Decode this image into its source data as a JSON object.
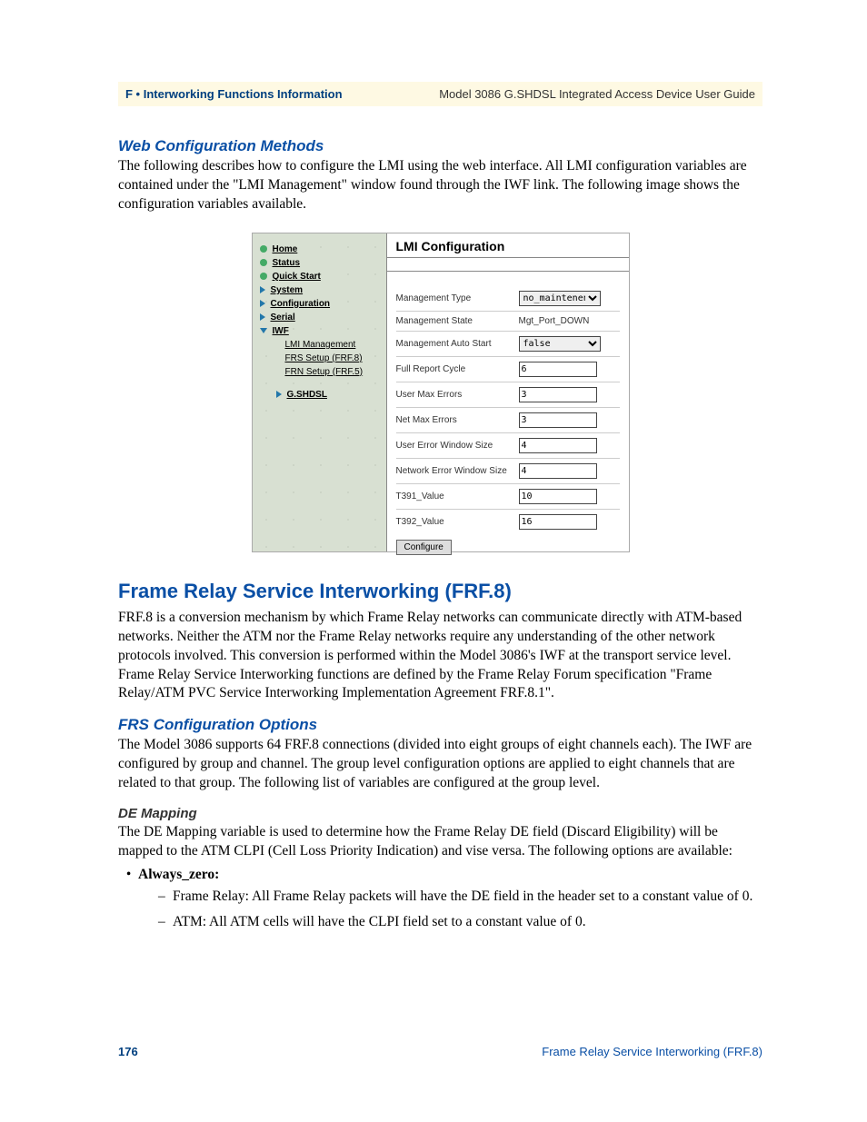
{
  "header": {
    "left": "F • Interworking Functions Information",
    "right": "Model 3086 G.SHDSL Integrated Access Device User Guide"
  },
  "section1": {
    "heading": "Web Configuration Methods",
    "body": "The following describes how to configure the LMI using the web interface. All LMI configuration variables are contained under the \"LMI Management\" window found through the IWF link. The following image shows the configuration variables available."
  },
  "screenshot": {
    "nav": {
      "items": [
        {
          "icon": "bullet",
          "label": "Home",
          "bold": true
        },
        {
          "icon": "bullet",
          "label": "Status",
          "bold": true
        },
        {
          "icon": "bullet",
          "label": "Quick Start",
          "bold": true
        },
        {
          "icon": "tri",
          "label": "System",
          "bold": true
        },
        {
          "icon": "tri",
          "label": "Configuration",
          "bold": true
        },
        {
          "icon": "tri",
          "label": "Serial",
          "bold": true
        },
        {
          "icon": "tri-down",
          "label": "IWF",
          "bold": true
        }
      ],
      "subitems": [
        "LMI Management",
        "FRS Setup (FRF.8)",
        "FRN Setup (FRF.5)"
      ],
      "gshdsl": {
        "icon": "tri",
        "label": "G.SHDSL",
        "bold": true
      }
    },
    "main": {
      "title": "LMI Configuration",
      "rows": [
        {
          "label": "Management Type",
          "type": "select",
          "value": "no_maintenence"
        },
        {
          "label": "Management State",
          "type": "text",
          "value": "Mgt_Port_DOWN"
        },
        {
          "label": "Management Auto Start",
          "type": "select",
          "value": "false"
        },
        {
          "label": "Full Report Cycle",
          "type": "input",
          "value": "6"
        },
        {
          "label": "User Max Errors",
          "type": "input",
          "value": "3"
        },
        {
          "label": "Net Max Errors",
          "type": "input",
          "value": "3"
        },
        {
          "label": "User Error Window Size",
          "type": "input",
          "value": "4"
        },
        {
          "label": "Network Error Window Size",
          "type": "input",
          "value": "4"
        },
        {
          "label": "T391_Value",
          "type": "input",
          "value": "10"
        },
        {
          "label": "T392_Value",
          "type": "input",
          "value": "16"
        }
      ],
      "button": "Configure"
    }
  },
  "section2": {
    "heading": "Frame Relay Service Interworking (FRF.8)",
    "body": "FRF.8 is a conversion mechanism by which Frame Relay networks can communicate directly with ATM-based networks. Neither the ATM nor the Frame Relay networks require any understanding of the other network protocols involved. This conversion is performed within the Model 3086's IWF at the transport service level. Frame Relay Service Interworking functions are defined by the Frame Relay Forum specification \"Frame Relay/ATM PVC Service Interworking Implementation Agreement FRF.8.1\"."
  },
  "section3": {
    "heading": "FRS Configuration Options",
    "body": "The Model 3086 supports 64 FRF.8 connections (divided into eight groups of eight channels each). The IWF are configured by group and channel. The group level configuration options are applied to eight channels that are related to that group. The following list of variables are configured at the group level."
  },
  "section4": {
    "heading": "DE Mapping",
    "body": "The DE Mapping variable is used to determine how the Frame Relay DE field (Discard Eligibility) will be mapped to the ATM CLPI (Cell Loss Priority Indication) and vise versa. The following options are available:",
    "bullet": "Always_zero:",
    "dash1": "Frame Relay: All Frame Relay packets will have the DE field in the header set to a constant value of 0.",
    "dash2": "ATM: All ATM cells will have the CLPI field set to a constant value of 0."
  },
  "footer": {
    "page": "176",
    "right": "Frame Relay Service Interworking (FRF.8)"
  }
}
